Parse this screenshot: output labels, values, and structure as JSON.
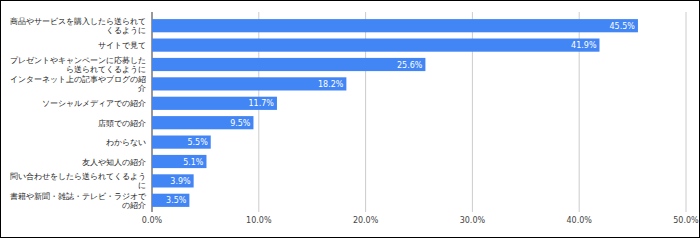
{
  "chart_data": {
    "type": "bar",
    "orientation": "horizontal",
    "categories": [
      "商品やサービスを購入したら送られてくるように",
      "サイトで見て",
      "プレゼントやキャンペーンに応募したら送られてくるように",
      "インターネット上の記事やブログの紹介",
      "ソーシャルメディアでの紹介",
      "店頭での紹介",
      "わからない",
      "友人や知人の紹介",
      "問い合わせをしたら送られてくるように",
      "書籍や新聞・雑誌・テレビ・ラジオでの紹介"
    ],
    "values": [
      45.5,
      41.9,
      25.6,
      18.2,
      11.7,
      9.5,
      5.5,
      5.1,
      3.9,
      3.5
    ],
    "value_labels": [
      "45.5%",
      "41.9%",
      "25.6%",
      "18.2%",
      "11.7%",
      "9.5%",
      "5.5%",
      "5.1%",
      "3.9%",
      "3.5%"
    ],
    "color": "#4285f4",
    "data_labels": true,
    "grid": true,
    "xlim": [
      0,
      50
    ],
    "xticks": [
      {
        "value": 0,
        "label": "0.0%"
      },
      {
        "value": 10,
        "label": "10.0%"
      },
      {
        "value": 20,
        "label": "20.0%"
      },
      {
        "value": 30,
        "label": "30.0%"
      },
      {
        "value": 40,
        "label": "40.0%"
      },
      {
        "value": 50,
        "label": "50.0%"
      }
    ]
  }
}
